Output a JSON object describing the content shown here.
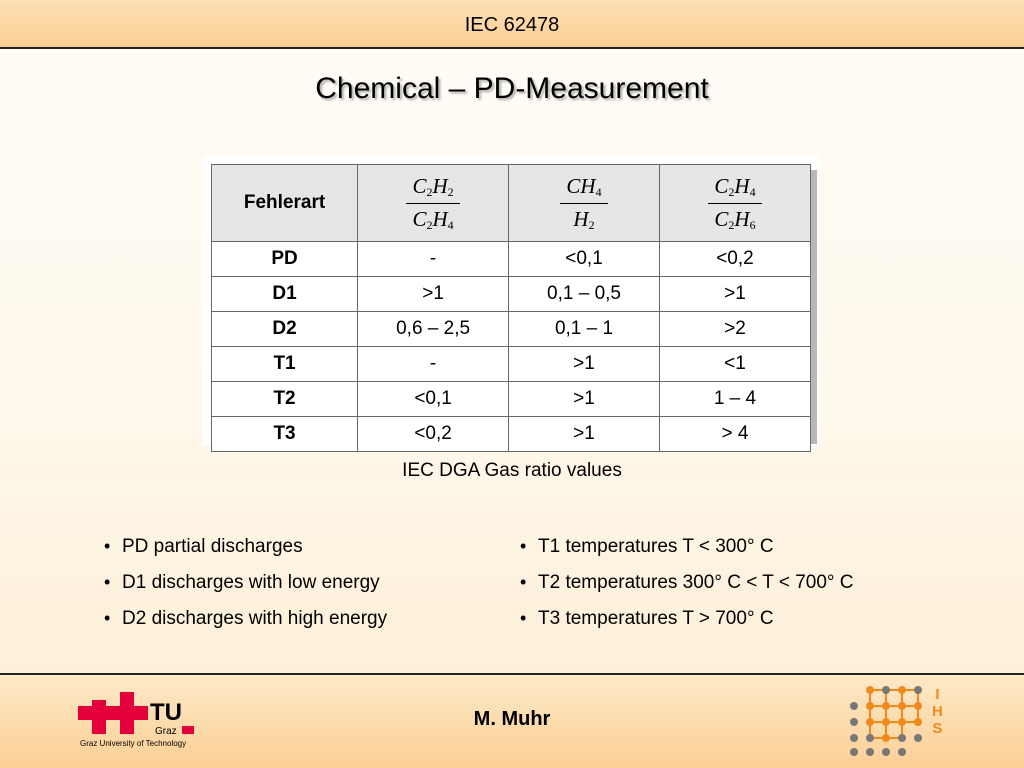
{
  "header": {
    "title": "IEC 62478"
  },
  "slide": {
    "title": "Chemical – PD-Measurement"
  },
  "table": {
    "corner": "Fehlerart",
    "ratios": [
      {
        "num_base": "C",
        "num_sub1": "2",
        "num_mid": "H",
        "num_sub2": "2",
        "den_base": "C",
        "den_sub1": "2",
        "den_mid": "H",
        "den_sub2": "4"
      },
      {
        "num_base": "CH",
        "num_sub1": "4",
        "den_base": "H",
        "den_sub1": "2"
      },
      {
        "num_base": "C",
        "num_sub1": "2",
        "num_mid": "H",
        "num_sub2": "4",
        "den_base": "C",
        "den_sub1": "2",
        "den_mid": "H",
        "den_sub2": "6"
      }
    ],
    "rows": [
      {
        "label": "PD",
        "values": [
          "-",
          "<0,1",
          "<0,2"
        ]
      },
      {
        "label": "D1",
        "values": [
          ">1",
          "0,1 – 0,5",
          ">1"
        ]
      },
      {
        "label": "D2",
        "values": [
          "0,6 – 2,5",
          "0,1 – 1",
          ">2"
        ]
      },
      {
        "label": "T1",
        "values": [
          "-",
          ">1",
          "<1"
        ]
      },
      {
        "label": "T2",
        "values": [
          "<0,1",
          ">1",
          "1 – 4"
        ]
      },
      {
        "label": "T3",
        "values": [
          "<0,2",
          ">1",
          "> 4"
        ]
      }
    ]
  },
  "caption": "IEC DGA Gas ratio values",
  "bullets_left": [
    "PD partial discharges",
    "D1 discharges with low energy",
    "D2 discharges with high energy"
  ],
  "bullets_right": [
    "T1 temperatures T < 300° C",
    "T2 temperatures 300° C < T < 700° C",
    "T3 temperatures T > 700° C"
  ],
  "footer": {
    "author": "M. Muhr",
    "tu_logo_text": "TU",
    "tu_logo_sub": "Graz",
    "tu_caption": "Graz University of Technology",
    "ihs_letters": [
      "I",
      "H",
      "S"
    ]
  },
  "colors": {
    "accent_orange": "#f08a1c",
    "tu_red": "#e4003a",
    "logo_grey": "#777777"
  }
}
